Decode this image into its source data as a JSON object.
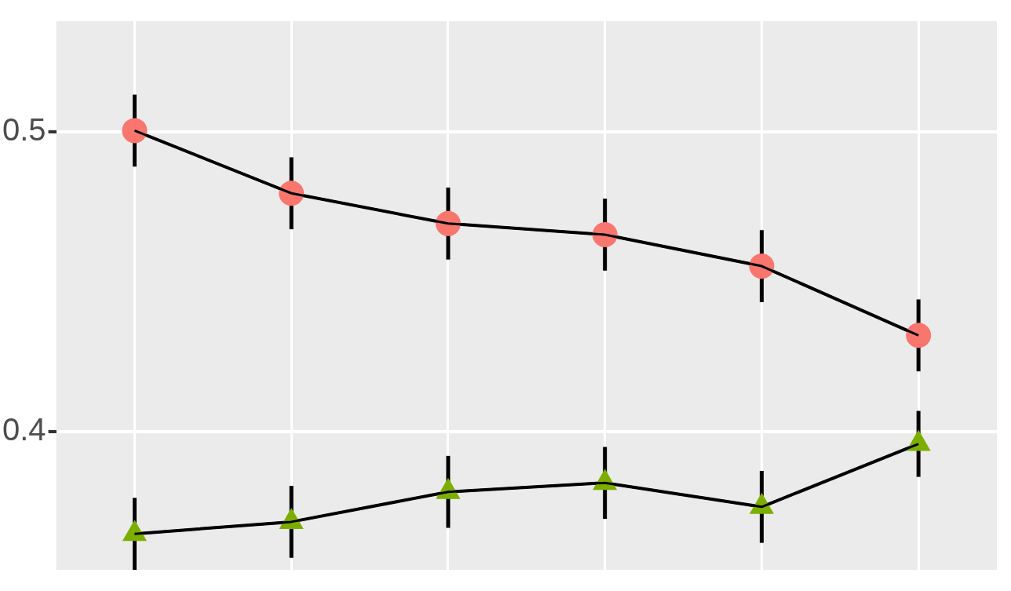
{
  "chart_data": {
    "type": "line",
    "categories": [
      null,
      null,
      null,
      null,
      null,
      null
    ],
    "series": [
      {
        "color": "#f8766d",
        "marker": "circle",
        "values": [
          0.5005,
          0.4796,
          0.4695,
          0.4658,
          0.4553,
          0.4322
        ],
        "errors": [
          0.012,
          0.012,
          0.012,
          0.012,
          0.012,
          0.012
        ]
      },
      {
        "color": "#7cae00",
        "marker": "triangle",
        "values": [
          0.366,
          0.37,
          0.38,
          0.383,
          0.375,
          0.396
        ],
        "errors": [
          0.012,
          0.012,
          0.012,
          0.012,
          0.012,
          0.011
        ]
      }
    ],
    "ylim": [
      0.354,
      0.537
    ],
    "yticks": [
      0.4,
      0.5
    ],
    "grid": true,
    "tick_labels": "y",
    "legend": false
  }
}
